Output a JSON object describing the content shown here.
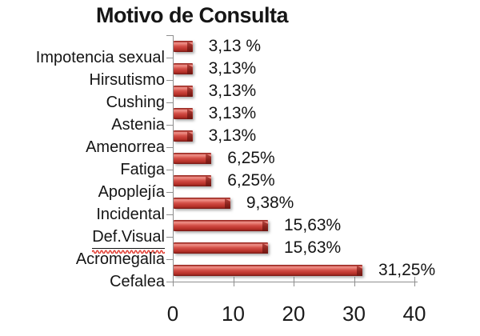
{
  "chart_data": {
    "type": "bar",
    "orientation": "horizontal",
    "title": "Motivo de Consulta",
    "categories": [
      "Impotencia sexual",
      "Hirsutismo",
      "Cushing",
      "Astenia",
      "Amenorrea",
      "Fatiga",
      "Apoplejía",
      "Incidental",
      "Def.Visual",
      "Acromegalia",
      "Cefalea"
    ],
    "values": [
      3.13,
      3.13,
      3.13,
      3.13,
      3.13,
      6.25,
      6.25,
      9.38,
      15.63,
      15.63,
      31.25
    ],
    "value_labels": [
      "3,13 %",
      "3,13%",
      "3,13%",
      "3,13%",
      "3,13%",
      "6,25%",
      "6,25%",
      "9,38%",
      "15,63%",
      "15,63%",
      "31,25%"
    ],
    "xlabel": "",
    "ylabel": "",
    "xlim": [
      0,
      40
    ],
    "x_ticks": [
      0,
      10,
      20,
      30,
      40
    ],
    "grid": false,
    "legend": false,
    "underlined_category": "Def.Visual",
    "colors": {
      "bar_main": "#C8423B",
      "bar_highlight": "#EC9189",
      "bar_dark_edge": "#701510",
      "axis": "#8E8E8E",
      "text": "#1C1C1C",
      "spellcheck_wavy": "#E23B30",
      "background": "#FFFFFF"
    }
  }
}
